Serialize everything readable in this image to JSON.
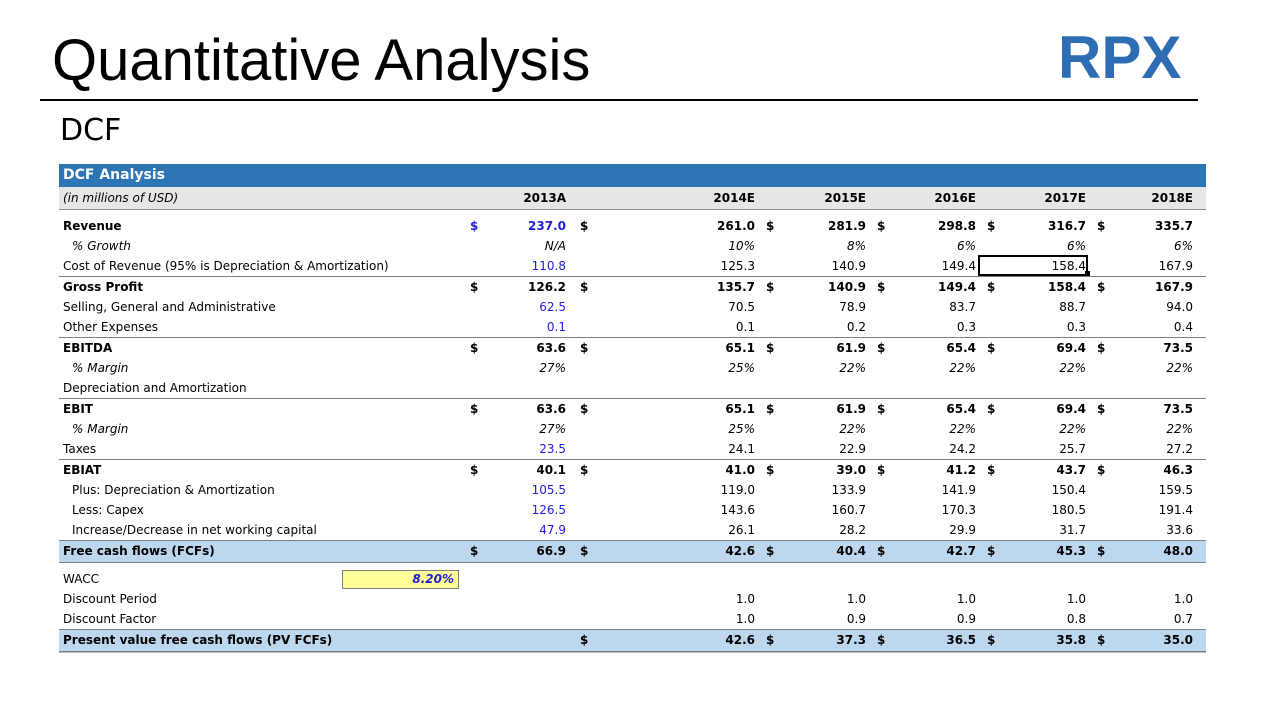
{
  "slide": {
    "title": "Quantitative Analysis",
    "subtitle": "DCF",
    "logo_text": "RPX",
    "logo_color": "#2e6db4"
  },
  "table": {
    "title": "DCF Analysis",
    "units": "(in millions of USD)",
    "years": [
      "2013A",
      "2014E",
      "2015E",
      "2016E",
      "2017E",
      "2018E"
    ],
    "currency": "$",
    "rows": {
      "revenue": {
        "label": "Revenue",
        "values": [
          "237.0",
          "261.0",
          "281.9",
          "298.8",
          "316.7",
          "335.7"
        ]
      },
      "revenue_growth": {
        "label": "% Growth",
        "values": [
          "N/A",
          "10%",
          "8%",
          "6%",
          "6%",
          "6%"
        ]
      },
      "cost_of_revenue": {
        "label": "Cost of Revenue (95% is Depreciation & Amortization)",
        "values": [
          "110.8",
          "125.3",
          "140.9",
          "149.4",
          "158.4",
          "167.9"
        ]
      },
      "gross_profit": {
        "label": "Gross Profit",
        "values": [
          "126.2",
          "135.7",
          "140.9",
          "149.4",
          "158.4",
          "167.9"
        ]
      },
      "sga": {
        "label": "Selling, General and Administrative",
        "values": [
          "62.5",
          "70.5",
          "78.9",
          "83.7",
          "88.7",
          "94.0"
        ]
      },
      "other_expenses": {
        "label": "Other Expenses",
        "values": [
          "0.1",
          "0.1",
          "0.2",
          "0.3",
          "0.3",
          "0.4"
        ]
      },
      "ebitda": {
        "label": "EBITDA",
        "values": [
          "63.6",
          "65.1",
          "61.9",
          "65.4",
          "69.4",
          "73.5"
        ]
      },
      "ebitda_margin": {
        "label": "% Margin",
        "values": [
          "27%",
          "25%",
          "22%",
          "22%",
          "22%",
          "22%"
        ]
      },
      "d_and_a": {
        "label": "Depreciation and Amortization"
      },
      "ebit": {
        "label": "EBIT",
        "values": [
          "63.6",
          "65.1",
          "61.9",
          "65.4",
          "69.4",
          "73.5"
        ]
      },
      "ebit_margin": {
        "label": "% Margin",
        "values": [
          "27%",
          "25%",
          "22%",
          "22%",
          "22%",
          "22%"
        ]
      },
      "taxes": {
        "label": "Taxes",
        "values": [
          "23.5",
          "24.1",
          "22.9",
          "24.2",
          "25.7",
          "27.2"
        ]
      },
      "ebiat": {
        "label": "EBIAT",
        "values": [
          "40.1",
          "41.0",
          "39.0",
          "41.2",
          "43.7",
          "46.3"
        ]
      },
      "plus_da": {
        "label": "Plus: Depreciation & Amortization",
        "values": [
          "105.5",
          "119.0",
          "133.9",
          "141.9",
          "150.4",
          "159.5"
        ]
      },
      "less_capex": {
        "label": "Less: Capex",
        "values": [
          "126.5",
          "143.6",
          "160.7",
          "170.3",
          "180.5",
          "191.4"
        ]
      },
      "nwc": {
        "label": "Increase/Decrease in net working capital",
        "values": [
          "47.9",
          "26.1",
          "28.2",
          "29.9",
          "31.7",
          "33.6"
        ]
      },
      "fcf": {
        "label": "Free cash flows (FCFs)",
        "values": [
          "66.9",
          "42.6",
          "40.4",
          "42.7",
          "45.3",
          "48.0"
        ]
      },
      "wacc": {
        "label": "WACC",
        "value": "8.20%"
      },
      "discount_period": {
        "label": "Discount Period",
        "values": [
          "1.0",
          "1.0",
          "1.0",
          "1.0",
          "1.0"
        ]
      },
      "discount_factor": {
        "label": "Discount Factor",
        "values": [
          "1.0",
          "0.9",
          "0.9",
          "0.8",
          "0.7"
        ]
      },
      "pv_fcf": {
        "label": "Present value free cash flows (PV FCFs)",
        "values": [
          "42.6",
          "37.3",
          "36.5",
          "35.8",
          "35.0"
        ]
      }
    }
  },
  "colors": {
    "header_blue": "#2e75b6",
    "total_row_blue": "#bdd7ee",
    "input_blue": "#1f1fd6",
    "wacc_yellow": "#ffff99"
  }
}
